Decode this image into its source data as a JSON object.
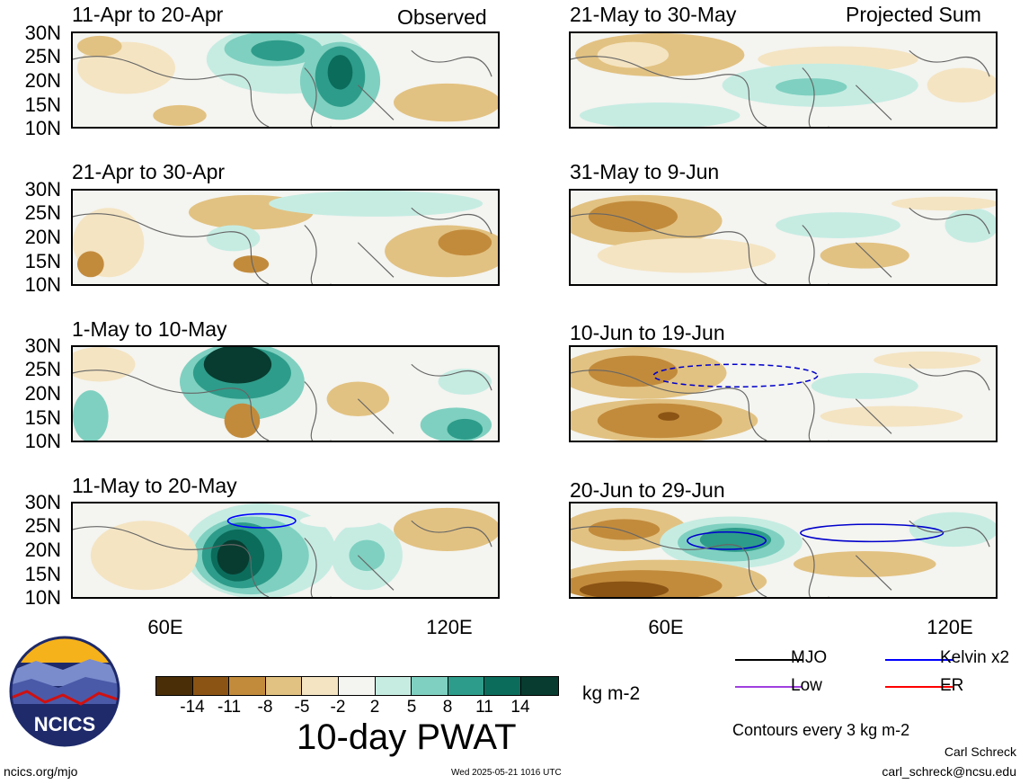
{
  "header": {
    "left_tag": "Observed",
    "right_tag": "Projected Sum"
  },
  "panels_left": [
    {
      "title": "11-Apr to 20-Apr"
    },
    {
      "title": "21-Apr to 30-Apr"
    },
    {
      "title": "1-May to 10-May"
    },
    {
      "title": "11-May to 20-May"
    }
  ],
  "panels_right": [
    {
      "title": "21-May to 30-May"
    },
    {
      "title": "31-May to 9-Jun"
    },
    {
      "title": "10-Jun to 19-Jun"
    },
    {
      "title": "20-Jun to 29-Jun"
    }
  ],
  "axes": {
    "lat_labels": [
      "30N",
      "25N",
      "20N",
      "15N",
      "10N"
    ],
    "lon_labels": [
      "60E",
      "120E"
    ]
  },
  "colorbar": {
    "ticks": [
      "-14",
      "-11",
      "-8",
      "-5",
      "-2",
      "2",
      "5",
      "8",
      "11",
      "14"
    ],
    "colors": [
      "#4a2e08",
      "#8b5414",
      "#c28b3c",
      "#e2c282",
      "#f4e4c2",
      "#f4f4f0",
      "#c6ece2",
      "#7fd0c0",
      "#2e9c8a",
      "#0b6c5c",
      "#083c30"
    ],
    "units": "kg m-2",
    "title": "10-day PWAT"
  },
  "legend": {
    "items": [
      {
        "label": "MJO",
        "color": "#000000"
      },
      {
        "label": "Kelvin x2",
        "color": "#0000ff"
      },
      {
        "label": "Low",
        "color": "#a040e0"
      },
      {
        "label": "ER",
        "color": "#ff0000"
      }
    ],
    "note": "Contours every 3 kg m-2"
  },
  "footer": {
    "logo_text": "NCICS",
    "url": "ncics.org/mjo",
    "timestamp": "Wed 2025-05-21 1016 UTC",
    "author": "Carl Schreck",
    "email": "carl_schreck@ncsu.edu"
  }
}
